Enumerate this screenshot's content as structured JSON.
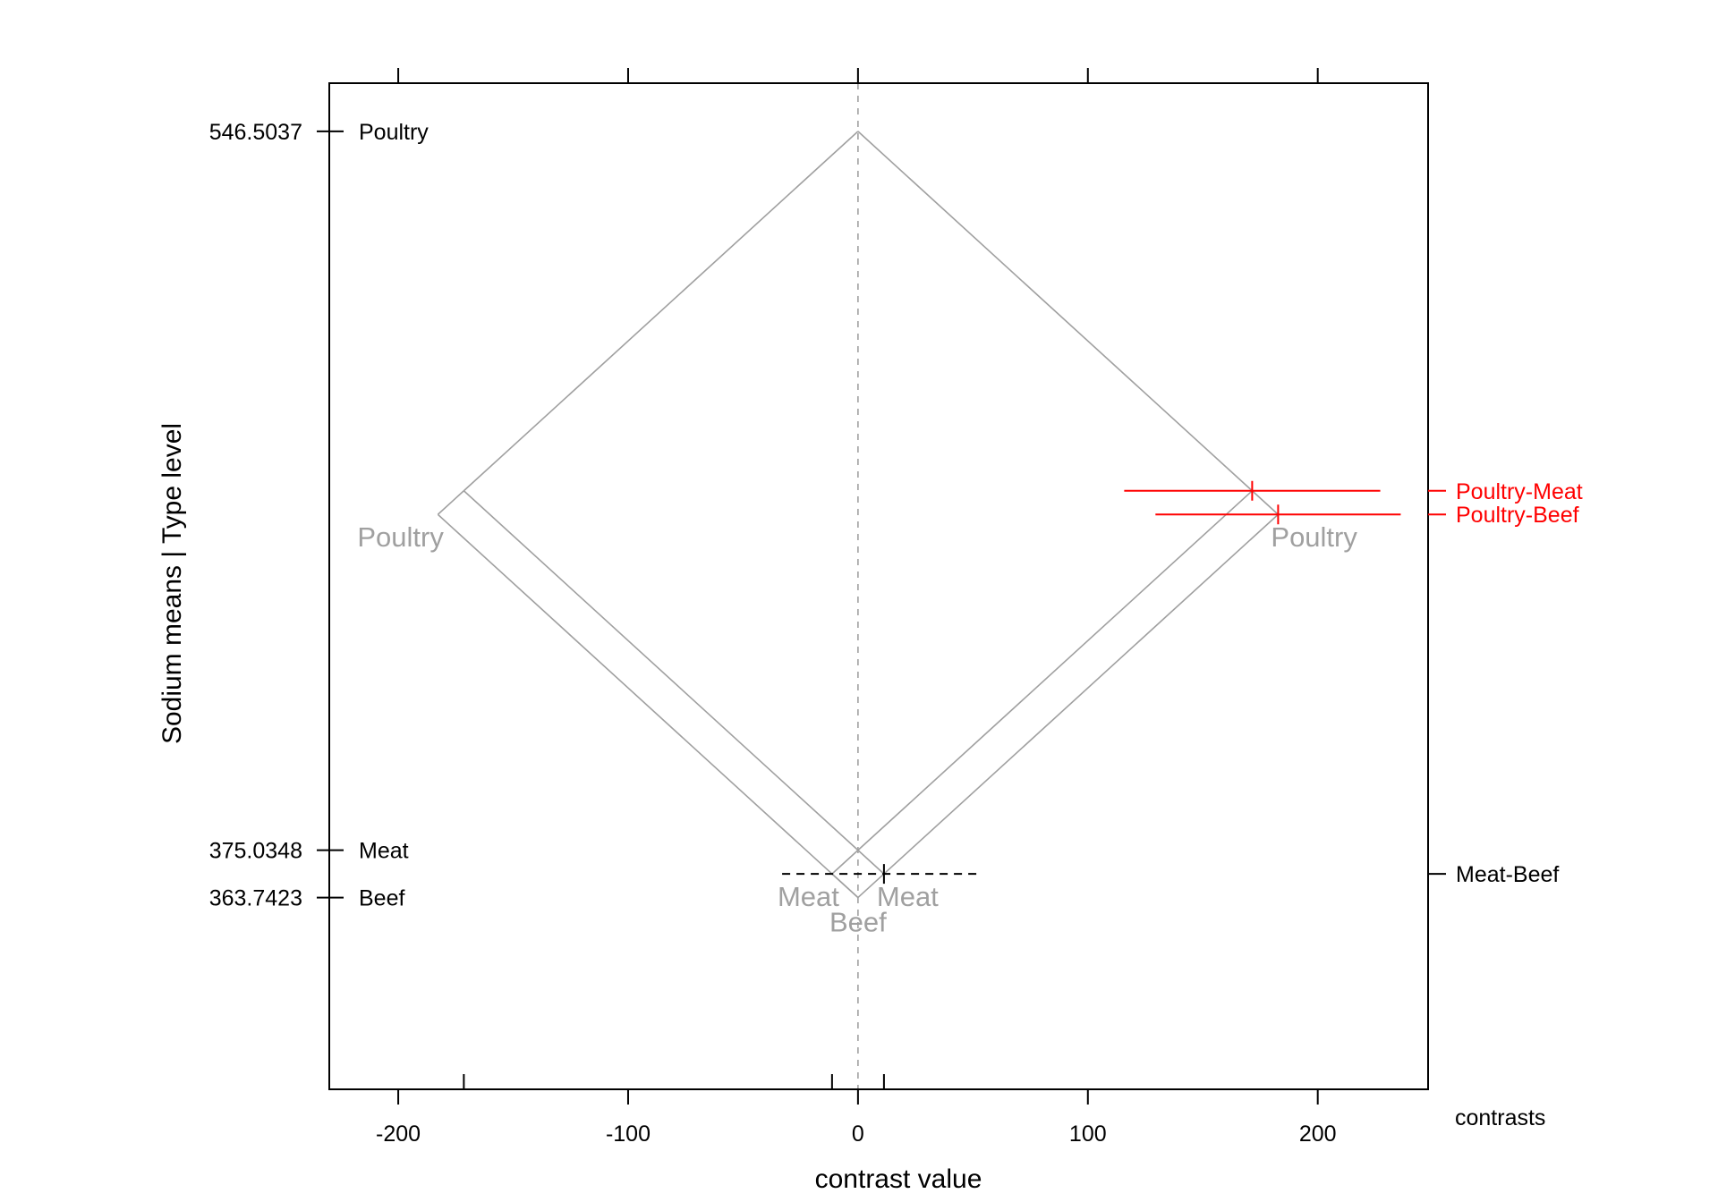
{
  "chart_data": {
    "type": "mean-mean multiple comparison",
    "xlabel": "contrast value",
    "ylabel": "Sodium means  |  Type level",
    "right_axis_title": "contrasts",
    "xlim": [
      -230,
      248
    ],
    "ylim": [
      318,
      558
    ],
    "x_ticks": [
      {
        "value": -200,
        "label": "-200"
      },
      {
        "value": -100,
        "label": "-100"
      },
      {
        "value": 0,
        "label": "0"
      },
      {
        "value": 100,
        "label": "100"
      },
      {
        "value": 200,
        "label": "200"
      }
    ],
    "levels": [
      {
        "name": "Poultry",
        "mean": 546.5037,
        "mean_label": "546.5037"
      },
      {
        "name": "Meat",
        "mean": 375.0348,
        "mean_label": "375.0348"
      },
      {
        "name": "Beef",
        "mean": 363.7423,
        "mean_label": "363.7423"
      }
    ],
    "contrasts": [
      {
        "name": "Poultry-Meat",
        "estimate": 171.4689,
        "lower": 115.8,
        "upper": 227.2,
        "significant": true
      },
      {
        "name": "Poultry-Beef",
        "estimate": 182.7614,
        "lower": 129.4,
        "upper": 236.1,
        "significant": true
      },
      {
        "name": "Meat-Beef",
        "estimate": 11.2925,
        "lower": -33.0,
        "upper": 53.5,
        "significant": false
      }
    ],
    "colors": {
      "axis": "#000000",
      "guide": "#a0a0a0",
      "significant": "#ff0000",
      "not_significant": "#000000"
    },
    "grid": false,
    "legend": "none"
  }
}
